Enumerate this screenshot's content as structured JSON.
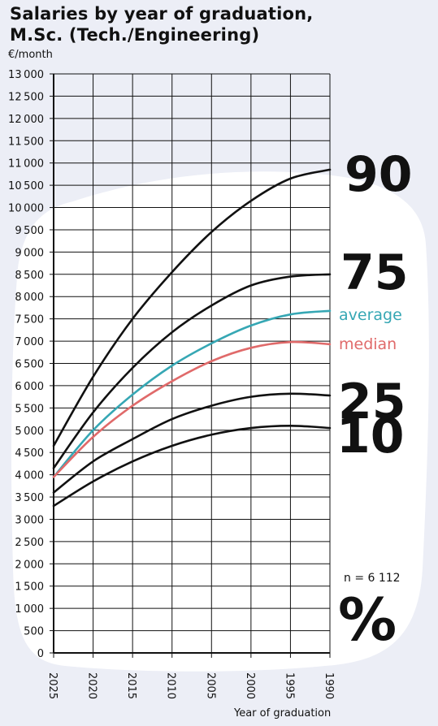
{
  "title": [
    "Salaries by year of graduation,",
    "M.Sc. (Tech./Engineering)"
  ],
  "sample_note": "n = 6 112",
  "percent_sign": "%",
  "colors": {
    "background": "#eceef6",
    "blob": "#ffffff",
    "ink": "#111111",
    "average": "#36a7b4",
    "median": "#e06a6a"
  },
  "chart_data": {
    "type": "line",
    "title": "Salaries by year of graduation, M.Sc. (Tech./Engineering)",
    "ylabel": "€/month",
    "xlabel": "Year of graduation",
    "ylim": [
      0,
      13000
    ],
    "ytick_step": 500,
    "xlim": [
      2025,
      1990
    ],
    "x_reversed": true,
    "xticks": [
      2025,
      2020,
      2015,
      2010,
      2005,
      2000,
      1995,
      1990
    ],
    "grid": true,
    "x": [
      2025,
      2020,
      2015,
      2010,
      2005,
      2000,
      1995,
      1990
    ],
    "series": [
      {
        "name": "90",
        "label_style": "big",
        "color": "#111111",
        "values": [
          4650,
          6200,
          7500,
          8550,
          9450,
          10150,
          10650,
          10850
        ]
      },
      {
        "name": "75",
        "label_style": "big",
        "color": "#111111",
        "values": [
          4150,
          5400,
          6400,
          7200,
          7800,
          8250,
          8450,
          8500
        ]
      },
      {
        "name": "average",
        "label_style": "word",
        "color": "#36a7b4",
        "values": [
          3950,
          5000,
          5800,
          6450,
          6950,
          7350,
          7600,
          7680
        ]
      },
      {
        "name": "median",
        "label_style": "word",
        "color": "#e06a6a",
        "values": [
          3950,
          4850,
          5550,
          6100,
          6550,
          6850,
          6980,
          6930
        ]
      },
      {
        "name": "25",
        "label_style": "big",
        "color": "#111111",
        "values": [
          3600,
          4300,
          4800,
          5250,
          5550,
          5750,
          5820,
          5780
        ]
      },
      {
        "name": "10",
        "label_style": "big",
        "color": "#111111",
        "values": [
          3300,
          3850,
          4300,
          4650,
          4900,
          5050,
          5100,
          5050
        ]
      }
    ]
  }
}
